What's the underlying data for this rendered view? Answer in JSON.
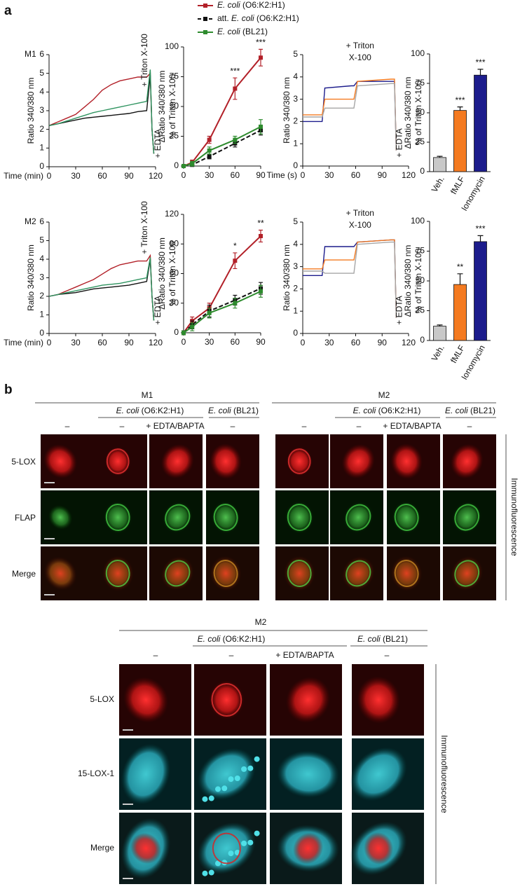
{
  "panel_a": {
    "label": "a"
  },
  "chart_data": [
    {
      "type": "line",
      "label": "M1",
      "xlabel": "Time (min)",
      "ylabel": "Ratio 340/380 nm",
      "x": [
        0,
        10,
        20,
        30,
        40,
        50,
        60,
        70,
        80,
        90,
        100,
        110,
        114,
        116,
        118
      ],
      "xlim": [
        0,
        120
      ],
      "xticks": [
        0,
        30,
        60,
        90,
        120
      ],
      "ylim": [
        0,
        6
      ],
      "yticks": [
        0,
        1,
        2,
        3,
        4,
        5,
        6
      ],
      "series": [
        {
          "color": "#b22028",
          "values": [
            2.2,
            2.4,
            2.6,
            2.8,
            3.2,
            3.6,
            4.1,
            4.4,
            4.6,
            4.7,
            4.8,
            4.8,
            5.0,
            2.0,
            0.7
          ]
        },
        {
          "color": "#111111",
          "values": [
            2.2,
            2.3,
            2.4,
            2.5,
            2.6,
            2.65,
            2.7,
            2.75,
            2.8,
            2.85,
            2.95,
            3.0,
            4.9,
            2.0,
            0.7
          ]
        },
        {
          "color": "#2f9460",
          "values": [
            2.2,
            2.3,
            2.45,
            2.6,
            2.75,
            2.9,
            3.0,
            3.1,
            3.2,
            3.3,
            3.4,
            3.5,
            5.2,
            2.0,
            0.7
          ]
        }
      ],
      "annotations": [
        {
          "text": "+ Triton X-100",
          "x": 108
        },
        {
          "text": "+ EDTA",
          "x": 123
        }
      ]
    },
    {
      "type": "line",
      "ylabel": [
        "ΔRatio 340/380 nm",
        "% of Triton X-100"
      ],
      "markers": "square",
      "x": [
        0,
        10,
        30,
        60,
        90
      ],
      "xlim": [
        0,
        90
      ],
      "xticks": [
        0,
        30,
        60,
        90
      ],
      "ylim": [
        0,
        100
      ],
      "yticks": [
        0,
        25,
        50,
        75,
        100
      ],
      "series": [
        {
          "name": "E. coli (O6:K2:H1)",
          "color": "#b22028",
          "values": [
            0,
            3,
            22,
            65,
            91
          ],
          "errors": [
            1,
            2,
            3,
            9,
            7
          ],
          "significance": [
            null,
            null,
            null,
            "***",
            "***"
          ]
        },
        {
          "name": "att. E. coli (O6:K2:H1)",
          "color": "#111111",
          "dash": true,
          "values": [
            0,
            1,
            8,
            19,
            30
          ],
          "errors": [
            1,
            1,
            2,
            3,
            4
          ]
        },
        {
          "name": "E. coli (BL21)",
          "color": "#2e8b2e",
          "values": [
            0,
            2,
            13,
            22,
            33
          ],
          "errors": [
            1,
            2,
            3,
            3,
            6
          ]
        }
      ]
    },
    {
      "type": "line",
      "xlabel": "Time (s)",
      "ylabel": "Ratio 340/380 nm",
      "x": [
        0,
        22,
        25,
        55,
        58,
        62,
        100,
        104,
        106
      ],
      "xlim": [
        0,
        120
      ],
      "xticks": [
        0,
        30,
        60,
        90,
        120
      ],
      "ylim": [
        0,
        5
      ],
      "yticks": [
        0,
        1,
        2,
        3,
        4,
        5
      ],
      "series": [
        {
          "color": "#1c1c8c",
          "values": [
            2.0,
            2.0,
            3.5,
            3.6,
            3.6,
            3.8,
            3.8,
            3.8,
            0.7
          ]
        },
        {
          "color": "#f47a20",
          "values": [
            2.3,
            2.3,
            3.0,
            3.0,
            3.0,
            3.8,
            3.9,
            3.9,
            0.7
          ]
        },
        {
          "color": "#a6a6a6",
          "values": [
            2.2,
            2.2,
            2.6,
            2.6,
            2.6,
            3.6,
            3.7,
            3.7,
            0.7
          ]
        }
      ],
      "annotations": [
        {
          "text": [
            "+ Triton",
            "X-100"
          ],
          "x": 65
        },
        {
          "text": "+ EDTA",
          "x": 110
        }
      ]
    },
    {
      "type": "bar",
      "ylabel": [
        "ΔRatio 340/380 nm",
        "% of Triton X-100"
      ],
      "categories": [
        "Veh.",
        "fMLF",
        "Ionomycin"
      ],
      "colors": [
        "#c8c8c8",
        "#f47a20",
        "#1c1c8c"
      ],
      "values": [
        12,
        52,
        82
      ],
      "errors": [
        1,
        3,
        5
      ],
      "significance": [
        null,
        "***",
        "***"
      ],
      "ylim": [
        0,
        100
      ],
      "yticks": [
        0,
        25,
        50,
        75,
        100
      ]
    },
    {
      "type": "line",
      "label": "M2",
      "xlabel": "Time (min)",
      "ylabel": "Ratio 340/380 nm",
      "x": [
        0,
        10,
        20,
        30,
        40,
        50,
        60,
        70,
        80,
        90,
        100,
        110,
        114,
        116,
        118
      ],
      "xlim": [
        0,
        120
      ],
      "xticks": [
        0,
        30,
        60,
        90,
        120
      ],
      "ylim": [
        0,
        6
      ],
      "yticks": [
        0,
        1,
        2,
        3,
        4,
        5,
        6
      ],
      "series": [
        {
          "color": "#b22028",
          "values": [
            2.0,
            2.1,
            2.3,
            2.5,
            2.7,
            2.9,
            3.2,
            3.5,
            3.7,
            3.8,
            3.9,
            3.9,
            4.2,
            2.0,
            0.7
          ]
        },
        {
          "color": "#111111",
          "values": [
            2.0,
            2.1,
            2.15,
            2.2,
            2.3,
            2.4,
            2.45,
            2.5,
            2.55,
            2.6,
            2.7,
            2.8,
            4.0,
            2.0,
            0.7
          ]
        },
        {
          "color": "#2f9460",
          "values": [
            2.0,
            2.1,
            2.2,
            2.3,
            2.4,
            2.5,
            2.6,
            2.65,
            2.7,
            2.8,
            2.9,
            3.0,
            4.1,
            2.0,
            0.7
          ]
        }
      ],
      "annotations": [
        {
          "text": "+ Triton X-100",
          "x": 108
        },
        {
          "text": "+ EDTA",
          "x": 123
        }
      ]
    },
    {
      "type": "line",
      "ylabel": [
        "ΔRatio 340/380 nm",
        "% of Triton X-100"
      ],
      "markers": "square",
      "x": [
        0,
        10,
        30,
        60,
        90
      ],
      "xlim": [
        0,
        90
      ],
      "xticks": [
        0,
        30,
        60,
        90
      ],
      "ylim": [
        0,
        120
      ],
      "yticks": [
        0,
        30,
        60,
        90,
        120
      ],
      "series": [
        {
          "color": "#b22028",
          "values": [
            0,
            12,
            25,
            73,
            98
          ],
          "errors": [
            2,
            4,
            5,
            8,
            6
          ],
          "significance": [
            null,
            null,
            null,
            "*",
            "**"
          ]
        },
        {
          "color": "#111111",
          "dash": true,
          "values": [
            0,
            8,
            22,
            33,
            45
          ],
          "errors": [
            2,
            4,
            6,
            5,
            6
          ]
        },
        {
          "color": "#2e8b2e",
          "values": [
            0,
            6,
            20,
            30,
            42
          ],
          "errors": [
            2,
            4,
            5,
            5,
            6
          ]
        }
      ]
    },
    {
      "type": "line",
      "ylabel": "Ratio 340/380 nm",
      "x": [
        0,
        22,
        25,
        55,
        58,
        62,
        100,
        104,
        106
      ],
      "xlim": [
        0,
        120
      ],
      "xticks": [
        0,
        30,
        60,
        90,
        120
      ],
      "ylim": [
        0,
        5
      ],
      "yticks": [
        0,
        1,
        2,
        3,
        4,
        5
      ],
      "series": [
        {
          "color": "#1c1c8c",
          "values": [
            2.6,
            2.6,
            3.9,
            3.9,
            3.9,
            4.1,
            4.2,
            4.2,
            0.7
          ]
        },
        {
          "color": "#f47a20",
          "values": [
            2.9,
            2.9,
            3.3,
            3.3,
            3.3,
            4.1,
            4.2,
            4.2,
            0.7
          ]
        },
        {
          "color": "#a6a6a6",
          "values": [
            2.8,
            2.8,
            2.7,
            2.7,
            2.7,
            4.0,
            4.1,
            4.1,
            0.7
          ]
        }
      ],
      "annotations": [
        {
          "text": [
            "+ Triton",
            "X-100"
          ],
          "x": 65
        },
        {
          "text": "+ EDTA",
          "x": 110
        }
      ]
    },
    {
      "type": "bar",
      "ylabel": [
        "ΔRatio 340/380 nm",
        "% of Triton X-100"
      ],
      "categories": [
        "Veh.",
        "fMLF",
        "Ionomycin"
      ],
      "colors": [
        "#c8c8c8",
        "#f47a20",
        "#1c1c8c"
      ],
      "values": [
        12,
        47,
        83
      ],
      "errors": [
        1,
        9,
        5
      ],
      "significance": [
        null,
        "**",
        "***"
      ],
      "ylim": [
        0,
        100
      ],
      "yticks": [
        0,
        25,
        50,
        75,
        100
      ]
    }
  ],
  "panel_b": {
    "label": "b",
    "top": {
      "groups": [
        {
          "title": "M1",
          "strains": [
            "E. coli (O6:K2:H1)",
            "E. coli (BL21)"
          ],
          "conditions": [
            "–",
            "–",
            "+ EDTA/BAPTA",
            "–"
          ]
        },
        {
          "title": "M2",
          "strains": [
            "E. coli (O6:K2:H1)",
            "E. coli (BL21)"
          ],
          "conditions": [
            "–",
            "–",
            "+ EDTA/BAPTA",
            "–"
          ]
        }
      ],
      "rows": [
        "5-LOX",
        "FLAP",
        "Merge"
      ],
      "side_label": "Immunofluorescence"
    },
    "bottom": {
      "title": "M2",
      "strains": [
        "E. coli (O6:K2:H1)",
        "E. coli (BL21)"
      ],
      "conditions": [
        "–",
        "–",
        "+ EDTA/BAPTA",
        "–"
      ],
      "rows": [
        "5-LOX",
        "15-LOX-1",
        "Merge"
      ],
      "side_label": "Immunofluorescence"
    }
  }
}
